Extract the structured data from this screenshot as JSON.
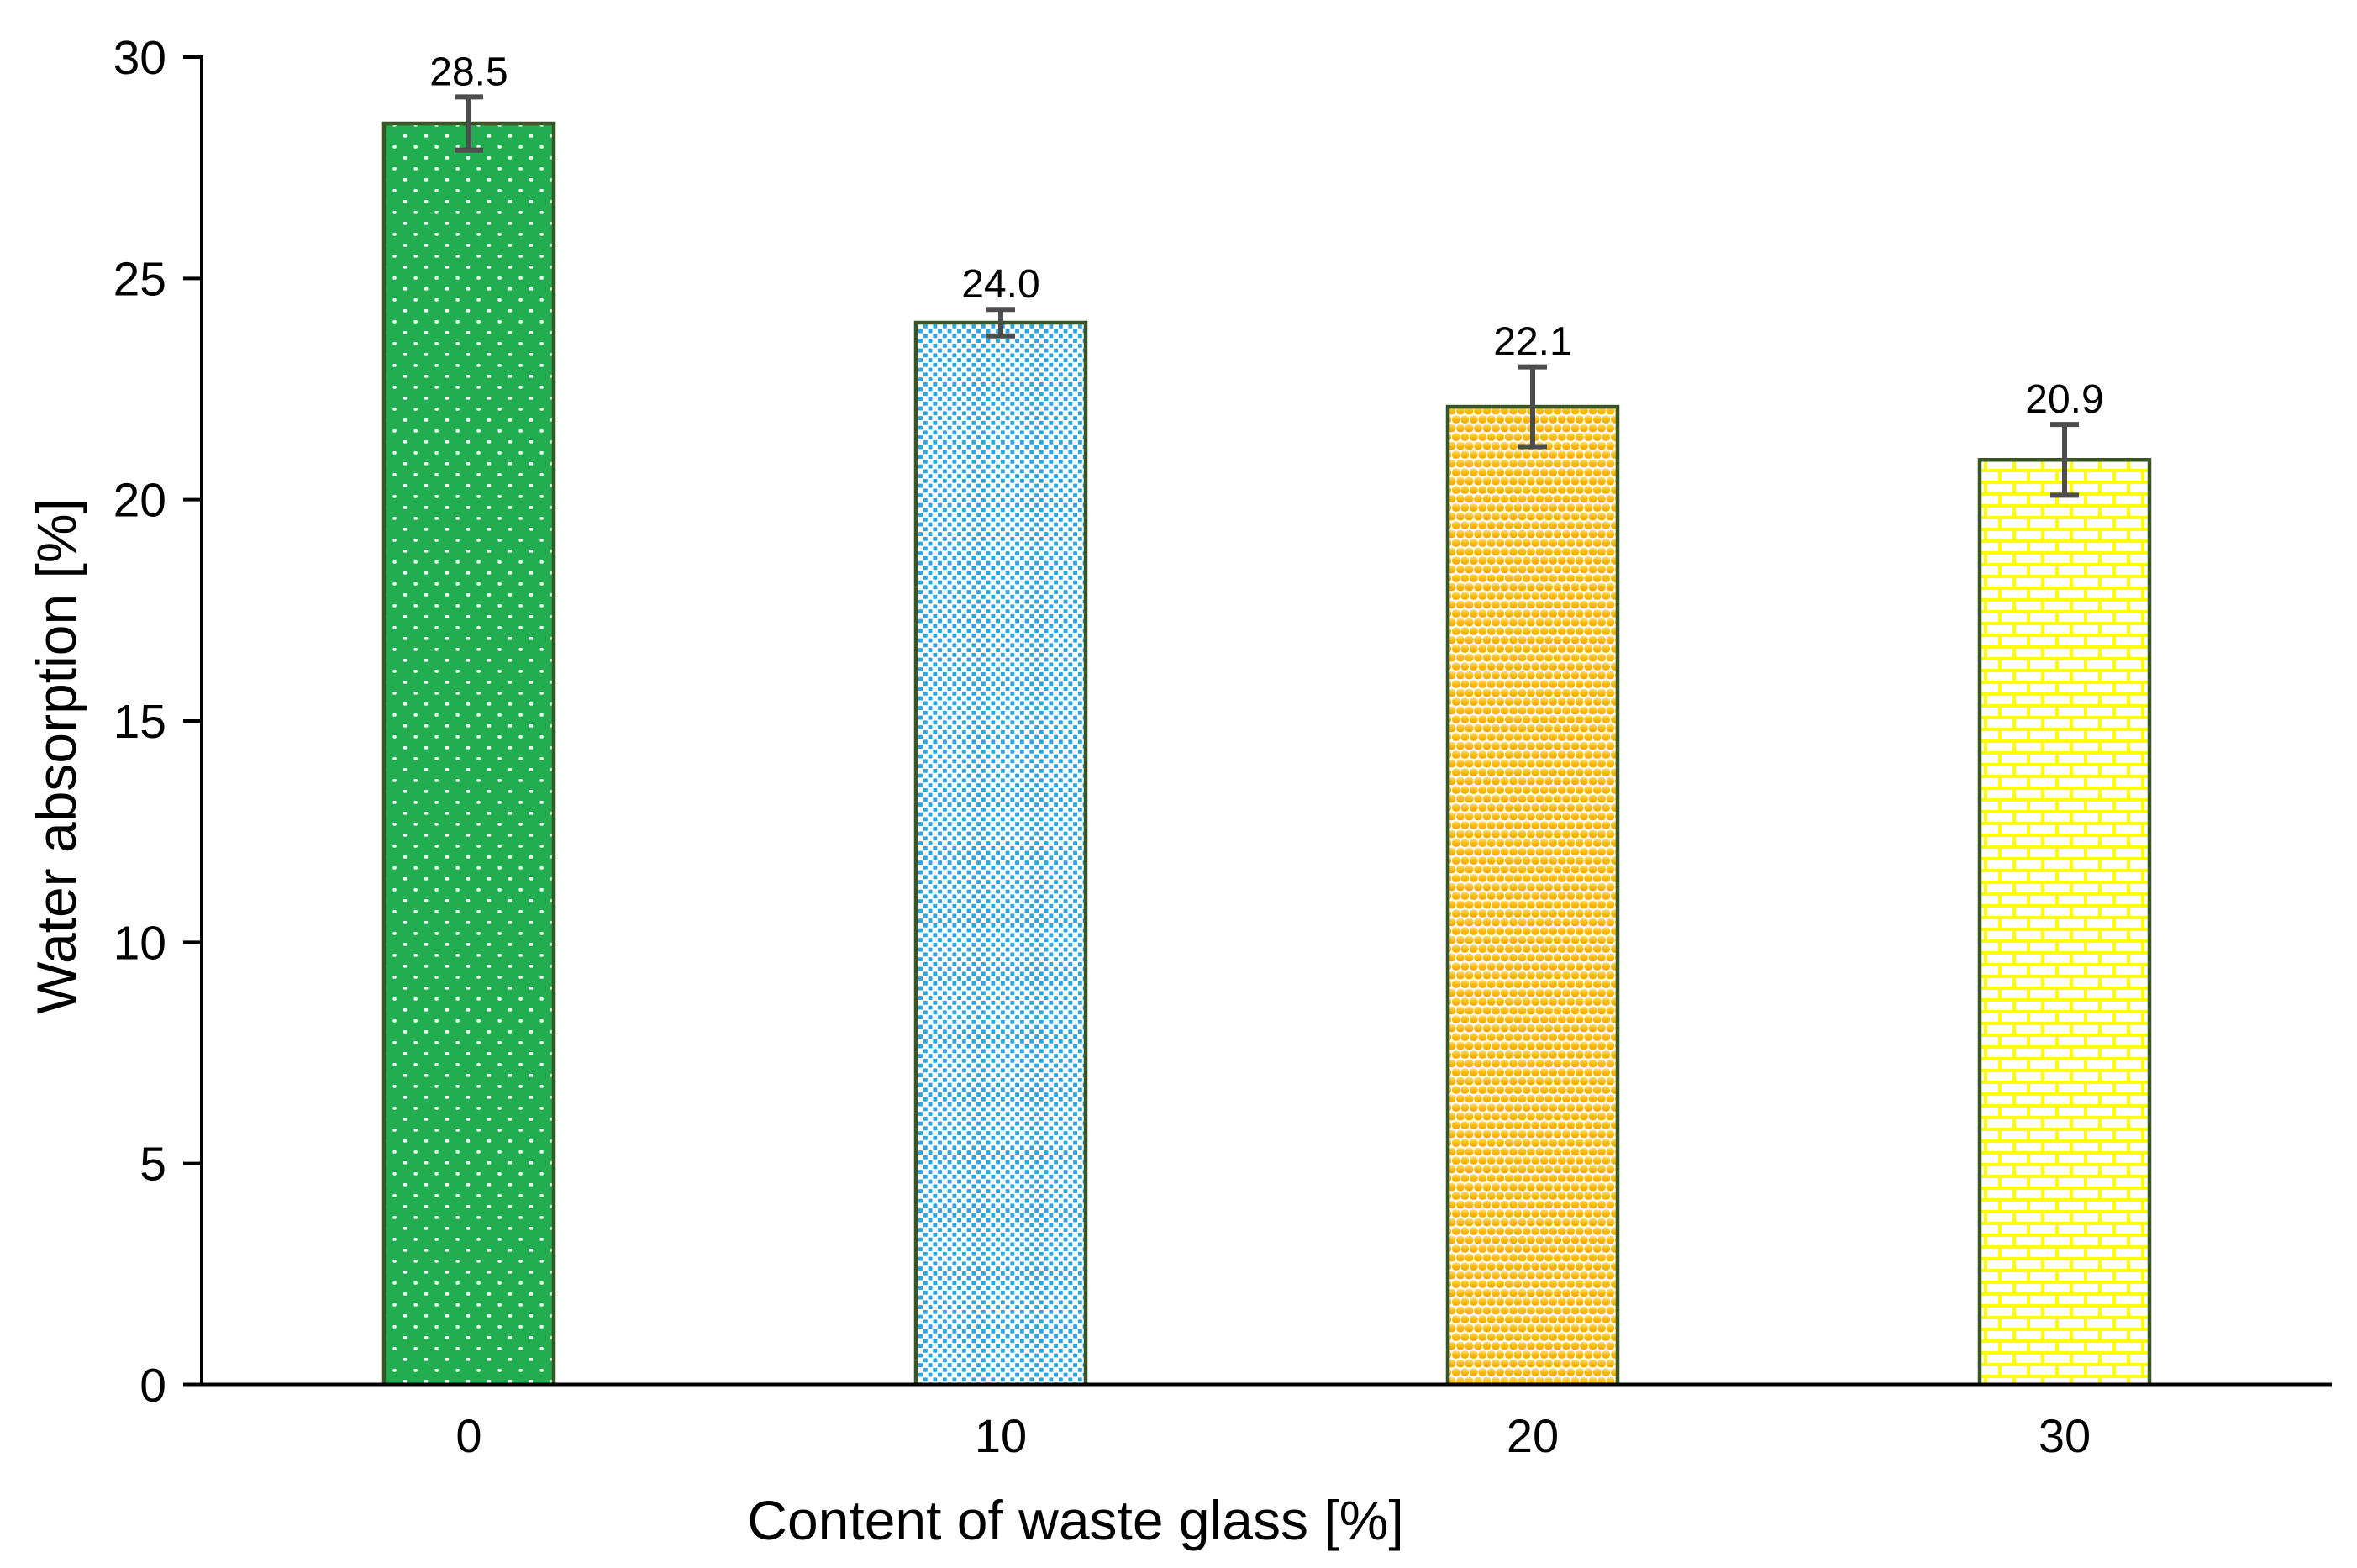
{
  "figure": {
    "background": "#FFFFFF"
  },
  "chart_data": {
    "type": "bar",
    "title": "",
    "xlabel": "Content of waste glass [%]",
    "ylabel": "Water absorption [%]",
    "categories": [
      "0",
      "10",
      "20",
      "30"
    ],
    "values": [
      28.5,
      24.0,
      22.1,
      20.9
    ],
    "value_labels": [
      "28.5",
      "24.0",
      "22.1",
      "20.9"
    ],
    "error_bars": [
      0.6,
      0.3,
      0.9,
      0.8
    ],
    "ylim": [
      0,
      30
    ],
    "yticks": [
      "0",
      "5",
      "10",
      "15",
      "20",
      "25",
      "30"
    ],
    "grid": false,
    "legend": "none",
    "bar_patterns": [
      "white-dots-on-green",
      "blue-squares-on-white",
      "orange-balls-on-white",
      "white-bricks-on-yellow"
    ],
    "colors": {
      "bar1_bg": "#23AD51",
      "bar1_dot": "#FFFFFF",
      "bar2_bg": "#FFFFFF",
      "bar2_square": "#2BA6E5",
      "bar3_bg": "#FFFFFF",
      "bar3_ball": "#FFC010",
      "bar3_ball_highlight": "#FFE089",
      "bar3_ball_shadow": "#F5A300",
      "bar4_bg": "#FFFF00",
      "bar4_brick": "#FFFFFF",
      "bar_border": "#375623",
      "error_bar": "#4D4D4D",
      "axis": "#000000",
      "text": "#000000"
    }
  }
}
